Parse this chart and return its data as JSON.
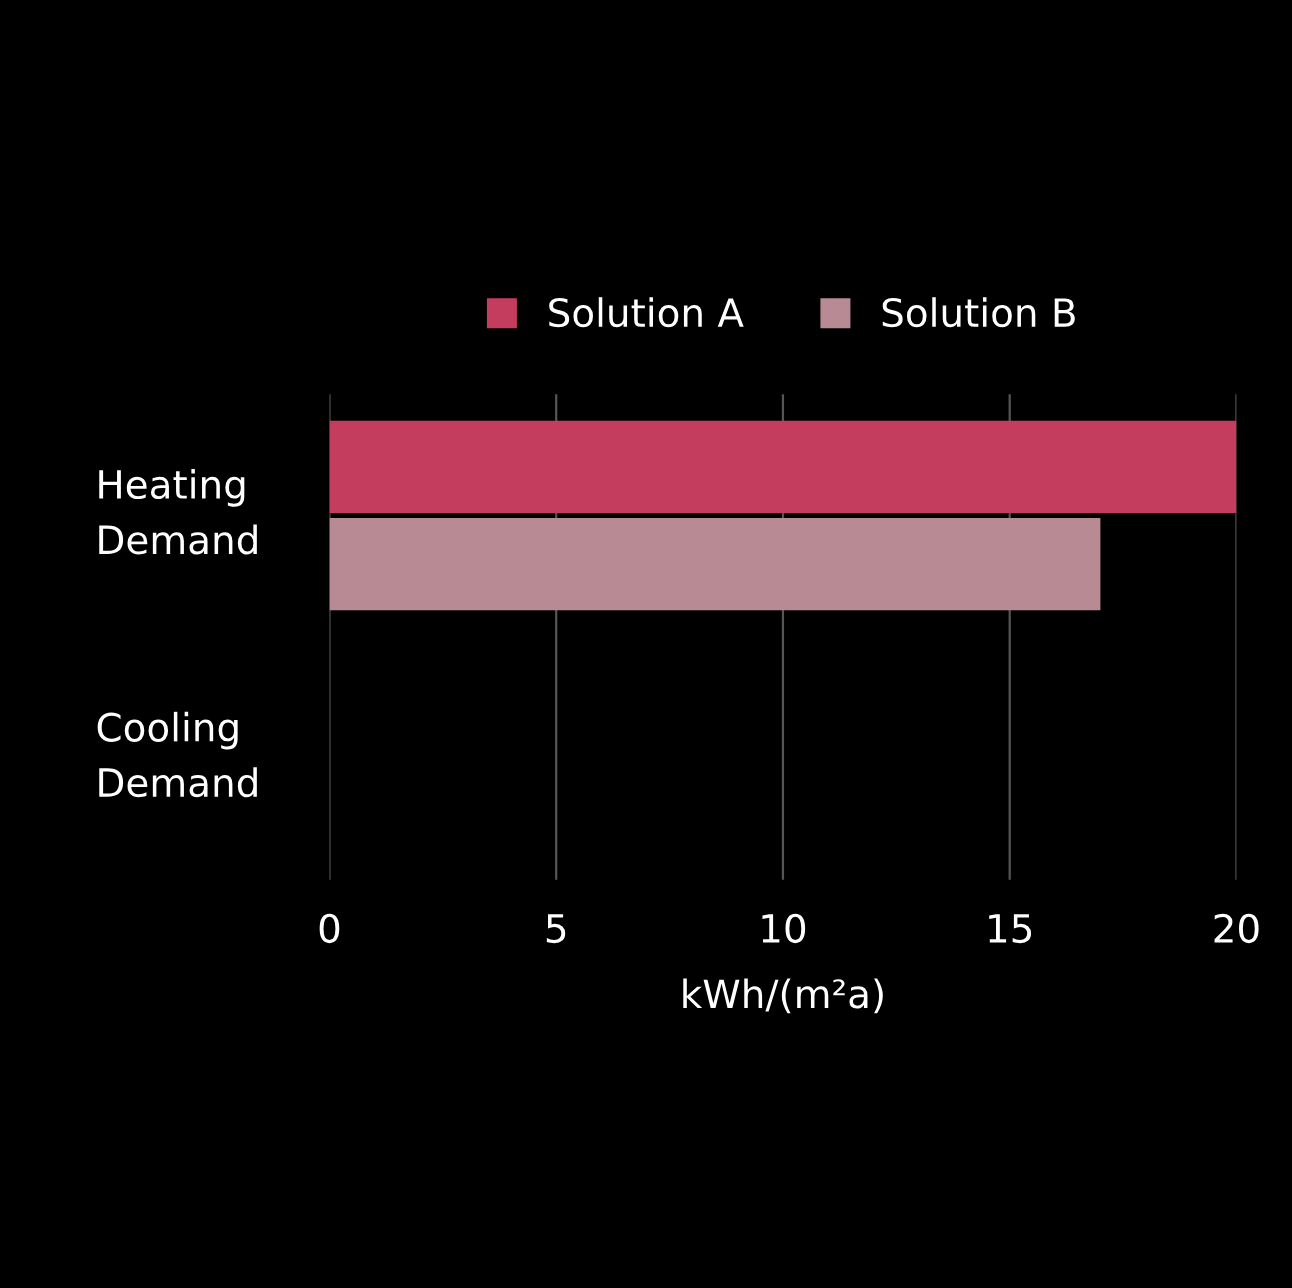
{
  "chart_data": {
    "type": "bar",
    "orientation": "horizontal",
    "xlabel": "kWh/(m²a)",
    "categories": [
      "Heating\nDemand",
      "Cooling\nDemand"
    ],
    "series": [
      {
        "name": "Solution A",
        "color": "#c43d5e",
        "values": [
          20,
          0
        ]
      },
      {
        "name": "Solution B",
        "color": "#b78a94",
        "values": [
          17,
          0
        ]
      }
    ],
    "xlim": [
      0,
      20
    ],
    "xticks": [
      0,
      5,
      10,
      15,
      20
    ],
    "grid": "x",
    "legend": "top"
  }
}
